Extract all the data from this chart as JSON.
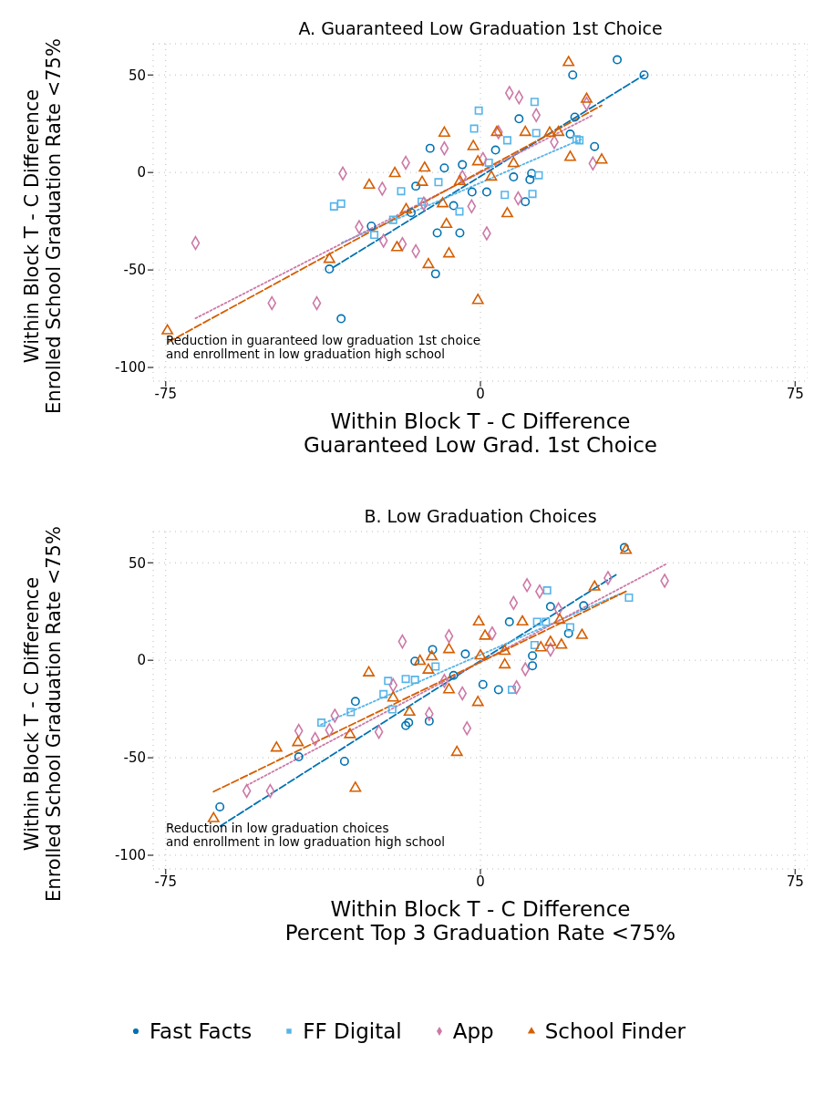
{
  "chart_data": [
    {
      "type": "scatter",
      "title": "A. Guaranteed Low Graduation 1st Choice",
      "xlabel": "Within Block T - C Difference\nGuaranteed Low Grad. 1st Choice",
      "ylabel": "Within Block T - C Difference\nEnrolled School Graduation Rate <75%",
      "xlim": [
        -78,
        78
      ],
      "ylim": [
        -107,
        66
      ],
      "xticks": [
        -75,
        0,
        75
      ],
      "yticks": [
        -100,
        -50,
        0,
        50
      ],
      "grid": true,
      "annotations": [
        "Reduction in guaranteed low graduation 1st choice\nand enrollment in low graduation high school"
      ],
      "series": [
        {
          "color": "#0072b2",
          "marker": "circle",
          "x": [
            -36,
            -33.2,
            -26,
            -16.5,
            -15.4,
            -12,
            -10.7,
            -10.3,
            -8.6,
            -6.4,
            -4.9,
            -4.3,
            -2,
            1.5,
            3.6,
            7.9,
            9.2,
            10.7,
            11.8,
            12.2,
            21.4,
            22,
            22.5,
            27.2,
            32.6,
            39
          ],
          "values": [
            -49.5,
            -75,
            -27.5,
            -20.6,
            -7,
            12.4,
            -52,
            -31,
            2.3,
            -17,
            -31,
            4,
            -10,
            -10,
            11.5,
            -2.3,
            27.5,
            -15,
            -3.7,
            -0.5,
            19.7,
            50,
            28.4,
            13.3,
            57.8,
            50
          ]
        },
        {
          "color": "#56b4e9",
          "marker": "square",
          "x": [
            -34.9,
            -33.2,
            -25.3,
            -20.8,
            -18.9,
            -14,
            -10,
            -5,
            -1.5,
            -0.4,
            2,
            5.8,
            6.4,
            12.4,
            12.9,
            13.3,
            13.9,
            22.9,
            23.6
          ],
          "values": [
            -17.4,
            -16,
            -32,
            -24.3,
            -9.6,
            -15,
            -5,
            -20,
            22.5,
            31.7,
            5,
            -11.5,
            16.5,
            -11,
            36.2,
            20.2,
            -1.4,
            17,
            16.5
          ]
        },
        {
          "color": "#cc79a7",
          "marker": "diamond",
          "x": [
            -67.9,
            -49.7,
            -39,
            -32.8,
            -28.9,
            -23.4,
            -23.1,
            -18.6,
            -17.8,
            -15.4,
            -13.5,
            -8.6,
            -4.3,
            -2.1,
            0.6,
            1.5,
            4.3,
            6.9,
            9,
            9.2,
            13.3,
            17.6,
            25.3,
            26.8
          ],
          "values": [
            -36.2,
            -67,
            -67,
            -0.5,
            -28,
            -8.3,
            -35,
            -36.7,
            5,
            -40.4,
            -16,
            12.4,
            -2.3,
            -17.4,
            6.9,
            -31.2,
            20.6,
            40.8,
            -13.3,
            38.5,
            29.4,
            15.6,
            35.3,
            4.6
          ]
        },
        {
          "color": "#d55e00",
          "marker": "triangle",
          "x": [
            -74.6,
            -36,
            -26.5,
            -20.4,
            -19.9,
            -17.7,
            -13.3,
            -13.9,
            -12.4,
            -9,
            -8.6,
            -8.1,
            -7.5,
            -4.9,
            -1.7,
            -0.6,
            -0.6,
            2.6,
            3.9,
            6.4,
            7.9,
            10.7,
            16.5,
            18.6,
            21,
            21.4,
            25.3,
            28.9
          ],
          "values": [
            -81.2,
            -44.5,
            -6.5,
            -0.5,
            -38.5,
            -19,
            2.3,
            -5,
            -47.2,
            -16,
            20.2,
            -26.6,
            -41.7,
            -4.6,
            13.3,
            5.5,
            -65.6,
            -2.3,
            20.6,
            -21.1,
            4.6,
            20.6,
            20.2,
            20.6,
            56.4,
            7.8,
            37.6,
            6.4
          ]
        },
        {
          "type": "line",
          "color": "#0072b2",
          "line_style": "dashed",
          "x": [
            -35,
            39
          ],
          "values": [
            -48.6,
            50
          ]
        },
        {
          "type": "line",
          "color": "#56b4e9",
          "line_style": "dotted",
          "x": [
            -33,
            24
          ],
          "values": [
            -36,
            17
          ]
        },
        {
          "type": "line",
          "color": "#cc79a7",
          "line_style": "dotted",
          "x": [
            -67.9,
            26.8
          ],
          "values": [
            -74.8,
            29.4
          ]
        },
        {
          "type": "line",
          "color": "#d55e00",
          "line_style": "dashed",
          "x": [
            -74.4,
            28.9
          ],
          "values": [
            -87,
            34.4
          ]
        }
      ]
    },
    {
      "type": "scatter",
      "title": "B. Low Graduation Choices",
      "xlabel": "Within Block T - C Difference\nPercent Top 3 Graduation Rate <75%",
      "ylabel": "Within Block T - C Difference\nEnrolled School Graduation Rate <75%",
      "xlim": [
        -78,
        78
      ],
      "ylim": [
        -107,
        66
      ],
      "xticks": [
        -75,
        0,
        75
      ],
      "yticks": [
        -100,
        -50,
        0,
        50
      ],
      "grid": true,
      "legend": "bottom",
      "annotations": [
        "Reduction in low graduation choices\nand enrollment in low graduation high school"
      ],
      "series": [
        {
          "name": "Fast Facts",
          "color": "#0072b2",
          "marker": "circle",
          "x": [
            -62.1,
            -43.3,
            -32.4,
            -29.8,
            -17.8,
            -17.1,
            -15.6,
            -12.2,
            -11.4,
            -6.4,
            -3.6,
            0.6,
            4.3,
            6.9,
            12.4,
            12.4,
            16.7,
            21,
            24.6,
            34.3
          ],
          "values": [
            -75.2,
            -49.5,
            -51.8,
            -21.1,
            -33.5,
            -32,
            -0.5,
            -31.2,
            5.5,
            -7.8,
            3.2,
            -12.4,
            -15.1,
            19.7,
            2.3,
            -2.8,
            27.5,
            13.8,
            28,
            57.8
          ]
        },
        {
          "name": "FF Digital",
          "color": "#56b4e9",
          "marker": "square",
          "x": [
            -37.9,
            -30.9,
            -23.1,
            -22,
            -21,
            -17.8,
            -15.6,
            -10.7,
            7.5,
            12.9,
            13.5,
            15.6,
            15.9,
            21.4,
            35.4
          ],
          "values": [
            -32,
            -26.6,
            -17.4,
            -10.6,
            -25.2,
            -9.6,
            -10,
            -3.2,
            -15.1,
            7.8,
            19.7,
            19.7,
            35.8,
            16.9,
            32.1
          ]
        },
        {
          "name": "App",
          "color": "#cc79a7",
          "marker": "diamond",
          "x": [
            -55.7,
            -50.1,
            -43.3,
            -39.4,
            -36,
            -34.7,
            -24.2,
            -20.8,
            -18.6,
            -12.2,
            -8.6,
            -7.5,
            -4.3,
            -3.2,
            2.8,
            7.9,
            8.6,
            10.7,
            11.1,
            14.1,
            16.7,
            18.6,
            30.4,
            43.9
          ],
          "values": [
            -67,
            -67,
            -36.2,
            -40.4,
            -35.8,
            -28.4,
            -36.7,
            -12.8,
            9.6,
            -27.5,
            -10.6,
            12.4,
            -17,
            -34.9,
            13.8,
            29.4,
            -13.8,
            -4.6,
            38.5,
            35.3,
            5.5,
            26.1,
            42.2,
            40.8
          ]
        },
        {
          "name": "School Finder",
          "color": "#d55e00",
          "marker": "triangle",
          "x": [
            -63.6,
            -48.6,
            -43.5,
            -31.1,
            -29.8,
            -26.6,
            -20.8,
            -16.9,
            -14.4,
            -12.4,
            -11.6,
            -7.5,
            -7.5,
            -5.6,
            -0.6,
            -0.4,
            0,
            1.1,
            5.8,
            5.8,
            10,
            14.4,
            16.7,
            18.9,
            19.3,
            24.2,
            27.2,
            34.7
          ],
          "values": [
            -81.2,
            -45,
            -42.2,
            -38.1,
            -65.6,
            -6.4,
            -19.3,
            -26.6,
            -0.5,
            -5,
            1.8,
            5.5,
            -15.1,
            -47.2,
            -21.6,
            19.7,
            2.3,
            12.4,
            4.6,
            -2.3,
            19.7,
            6.4,
            9.2,
            20.6,
            7.8,
            12.8,
            37.6,
            56.4
          ]
        },
        {
          "type": "line",
          "color": "#0072b2",
          "line_style": "dashed",
          "x": [
            -62,
            32.8
          ],
          "values": [
            -85,
            44.5
          ]
        },
        {
          "type": "line",
          "color": "#56b4e9",
          "line_style": "dotted",
          "x": [
            -38,
            33.6
          ],
          "values": [
            -33,
            34.4
          ]
        },
        {
          "type": "line",
          "color": "#cc79a7",
          "line_style": "dotted",
          "x": [
            -55.7,
            44.4
          ],
          "values": [
            -64.2,
            49.5
          ]
        },
        {
          "type": "line",
          "color": "#d55e00",
          "line_style": "dashed",
          "x": [
            -63.6,
            34.7
          ],
          "values": [
            -67.4,
            35.3
          ]
        }
      ]
    }
  ]
}
